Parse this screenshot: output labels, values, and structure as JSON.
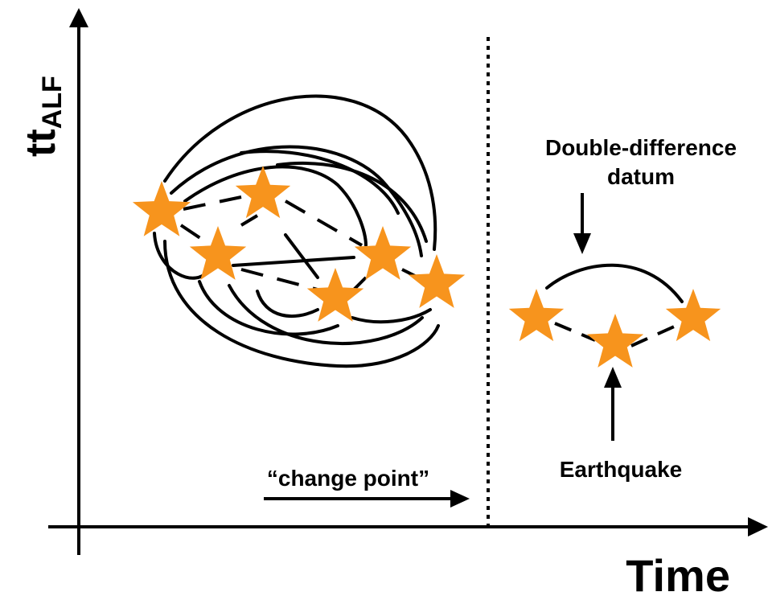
{
  "labels": {
    "y_axis_main": "tt",
    "y_axis_sub": "ALF",
    "x_axis": "Time",
    "change_point": "“change point”",
    "dd_datum_line1": "Double-difference",
    "dd_datum_line2": "datum",
    "earthquake": "Earthquake"
  },
  "colors": {
    "star": "#f7941d",
    "line": "#000000"
  },
  "icons": {
    "event_marker": "star-icon"
  }
}
